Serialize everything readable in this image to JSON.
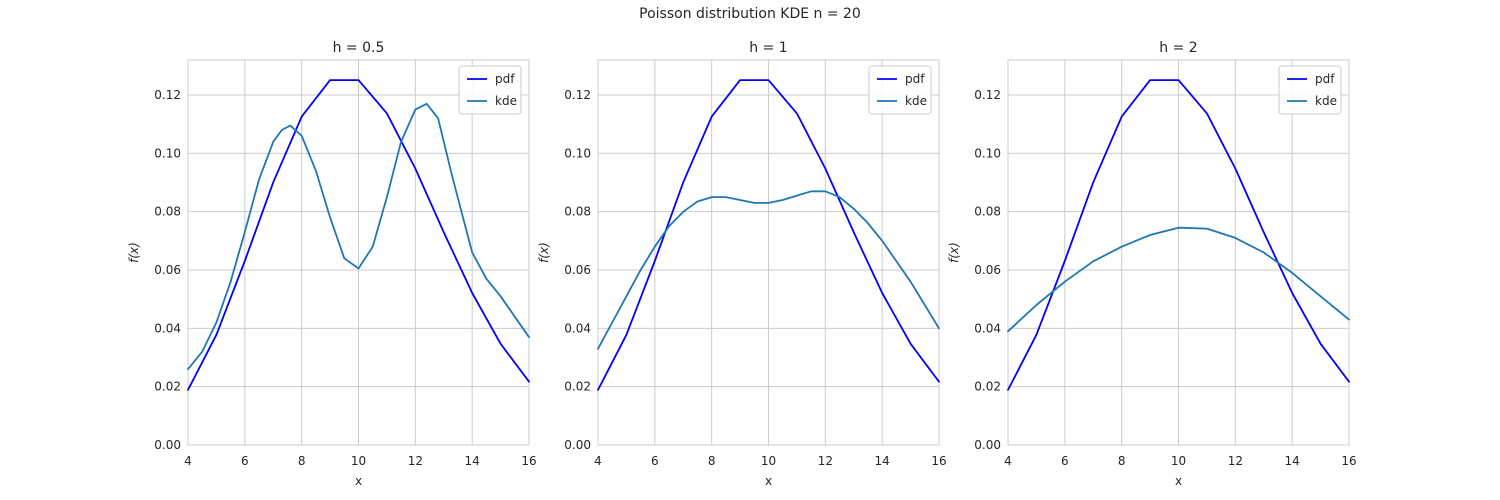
{
  "figure": {
    "title": "Poisson distribution KDE n = 20"
  },
  "chart_data": [
    {
      "type": "line",
      "title": "h = 0.5",
      "xlabel": "x",
      "ylabel": "f(x)",
      "xlim": [
        4,
        16
      ],
      "ylim": [
        0,
        0.132
      ],
      "xticks": [
        4,
        6,
        8,
        10,
        12,
        14,
        16
      ],
      "yticks": [
        0.0,
        0.02,
        0.04,
        0.06,
        0.08,
        0.1,
        0.12
      ],
      "ytick_labels": [
        "0.00",
        "0.02",
        "0.04",
        "0.06",
        "0.08",
        "0.10",
        "0.12"
      ],
      "grid": true,
      "legend_position": "top-right",
      "series": [
        {
          "name": "pdf",
          "color": "#0000ff",
          "x": [
            4,
            5,
            6,
            7,
            8,
            9,
            10,
            11,
            12,
            13,
            14,
            15,
            16
          ],
          "y": [
            0.0189,
            0.0378,
            0.0631,
            0.0901,
            0.1126,
            0.1251,
            0.1251,
            0.1137,
            0.0948,
            0.0729,
            0.0521,
            0.0347,
            0.0217
          ]
        },
        {
          "name": "kde",
          "color": "#1f77b4",
          "x": [
            4,
            4.5,
            5,
            5.5,
            6,
            6.5,
            7,
            7.3,
            7.6,
            8,
            8.5,
            9,
            9.5,
            10,
            10.5,
            11,
            11.5,
            12,
            12.4,
            12.8,
            13.3,
            14,
            14.5,
            15,
            15.5,
            16
          ],
          "y": [
            0.026,
            0.032,
            0.042,
            0.056,
            0.073,
            0.091,
            0.104,
            0.108,
            0.1095,
            0.106,
            0.094,
            0.078,
            0.064,
            0.0605,
            0.068,
            0.085,
            0.104,
            0.115,
            0.117,
            0.112,
            0.092,
            0.066,
            0.057,
            0.051,
            0.044,
            0.037
          ]
        }
      ]
    },
    {
      "type": "line",
      "title": "h = 1",
      "xlabel": "x",
      "ylabel": "f(x)",
      "xlim": [
        4,
        16
      ],
      "ylim": [
        0,
        0.132
      ],
      "xticks": [
        4,
        6,
        8,
        10,
        12,
        14,
        16
      ],
      "yticks": [
        0.0,
        0.02,
        0.04,
        0.06,
        0.08,
        0.1,
        0.12
      ],
      "ytick_labels": [
        "0.00",
        "0.02",
        "0.04",
        "0.06",
        "0.08",
        "0.10",
        "0.12"
      ],
      "grid": true,
      "legend_position": "top-right",
      "series": [
        {
          "name": "pdf",
          "color": "#0000ff",
          "x": [
            4,
            5,
            6,
            7,
            8,
            9,
            10,
            11,
            12,
            13,
            14,
            15,
            16
          ],
          "y": [
            0.0189,
            0.0378,
            0.0631,
            0.0901,
            0.1126,
            0.1251,
            0.1251,
            0.1137,
            0.0948,
            0.0729,
            0.0521,
            0.0347,
            0.0217
          ]
        },
        {
          "name": "kde",
          "color": "#1f77b4",
          "x": [
            4,
            4.5,
            5,
            5.5,
            6,
            6.5,
            7,
            7.5,
            8,
            8.5,
            9,
            9.5,
            10,
            10.5,
            11,
            11.5,
            12,
            12.5,
            13,
            13.5,
            14,
            14.5,
            15,
            15.5,
            16
          ],
          "y": [
            0.033,
            0.042,
            0.051,
            0.06,
            0.068,
            0.075,
            0.08,
            0.0835,
            0.085,
            0.085,
            0.084,
            0.083,
            0.083,
            0.084,
            0.0855,
            0.087,
            0.087,
            0.085,
            0.081,
            0.076,
            0.07,
            0.063,
            0.056,
            0.048,
            0.04
          ]
        }
      ]
    },
    {
      "type": "line",
      "title": "h = 2",
      "xlabel": "x",
      "ylabel": "f(x)",
      "xlim": [
        4,
        16
      ],
      "ylim": [
        0,
        0.132
      ],
      "xticks": [
        4,
        6,
        8,
        10,
        12,
        14,
        16
      ],
      "yticks": [
        0.0,
        0.02,
        0.04,
        0.06,
        0.08,
        0.1,
        0.12
      ],
      "ytick_labels": [
        "0.00",
        "0.02",
        "0.04",
        "0.06",
        "0.08",
        "0.10",
        "0.12"
      ],
      "grid": true,
      "legend_position": "top-right",
      "series": [
        {
          "name": "pdf",
          "color": "#0000ff",
          "x": [
            4,
            5,
            6,
            7,
            8,
            9,
            10,
            11,
            12,
            13,
            14,
            15,
            16
          ],
          "y": [
            0.0189,
            0.0378,
            0.0631,
            0.0901,
            0.1126,
            0.1251,
            0.1251,
            0.1137,
            0.0948,
            0.0729,
            0.0521,
            0.0347,
            0.0217
          ]
        },
        {
          "name": "kde",
          "color": "#1f77b4",
          "x": [
            4,
            5,
            6,
            7,
            8,
            9,
            10,
            11,
            12,
            13,
            14,
            15,
            16
          ],
          "y": [
            0.039,
            0.048,
            0.056,
            0.063,
            0.068,
            0.072,
            0.0745,
            0.0742,
            0.071,
            0.066,
            0.059,
            0.051,
            0.043
          ]
        }
      ]
    }
  ]
}
